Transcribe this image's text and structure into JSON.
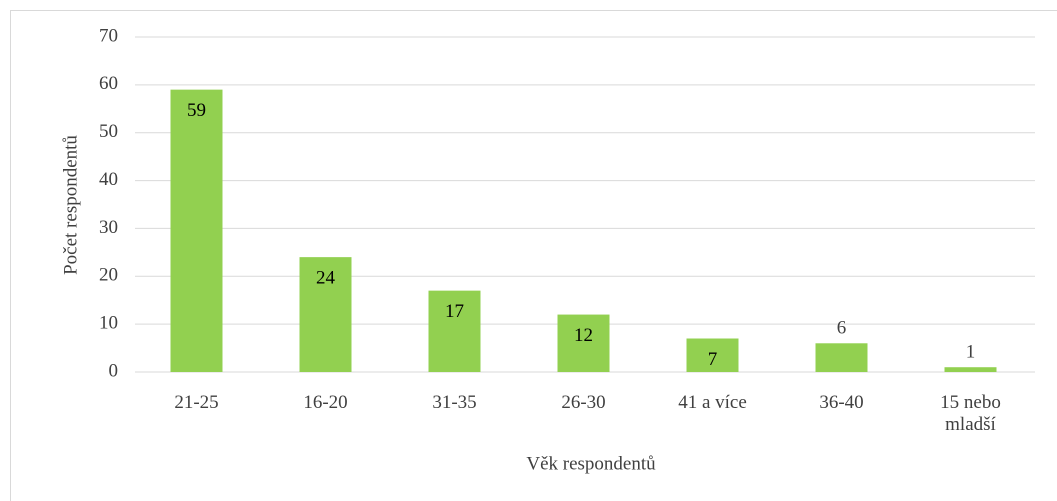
{
  "chart_data": {
    "type": "bar",
    "categories": [
      "21-25",
      "16-20",
      "31-35",
      "26-30",
      "41 a více",
      "36-40",
      "15 nebo mladší"
    ],
    "values": [
      59,
      24,
      17,
      12,
      7,
      6,
      1
    ],
    "color": "#92d050",
    "xlabel": "Věk respondentů",
    "ylabel": "Počet respondentů",
    "ylim": [
      0,
      70
    ],
    "yticks": [
      0,
      10,
      20,
      30,
      40,
      50,
      60,
      70
    ],
    "grid": true,
    "data_labels": true
  }
}
